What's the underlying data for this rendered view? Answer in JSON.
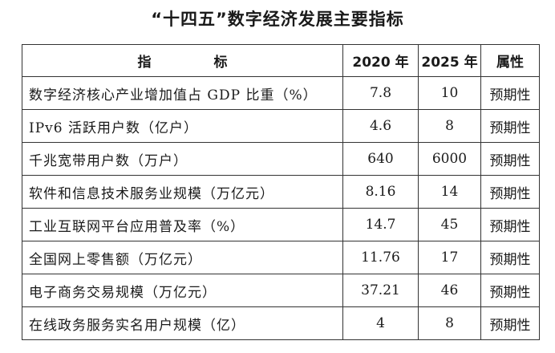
{
  "title": "“十四五”数字经济发展主要指标",
  "table": {
    "headers": {
      "indicator": "指 标",
      "y2020": "2020 年",
      "y2025": "2025 年",
      "attribute": "属性"
    },
    "rows": [
      {
        "indicator": "数字经济核心产业增加值占 GDP 比重（%）",
        "y2020": "7.8",
        "y2025": "10",
        "attribute": "预期性"
      },
      {
        "indicator": "IPv6 活跃用户数（亿户）",
        "y2020": "4.6",
        "y2025": "8",
        "attribute": "预期性"
      },
      {
        "indicator": "千兆宽带用户数（万户）",
        "y2020": "640",
        "y2025": "6000",
        "attribute": "预期性"
      },
      {
        "indicator": "软件和信息技术服务业规模（万亿元）",
        "y2020": "8.16",
        "y2025": "14",
        "attribute": "预期性"
      },
      {
        "indicator": "工业互联网平台应用普及率（%）",
        "y2020": "14.7",
        "y2025": "45",
        "attribute": "预期性"
      },
      {
        "indicator": "全国网上零售额（万亿元）",
        "y2020": "11.76",
        "y2025": "17",
        "attribute": "预期性"
      },
      {
        "indicator": "电子商务交易规模（万亿元）",
        "y2020": "37.21",
        "y2025": "46",
        "attribute": "预期性"
      },
      {
        "indicator": "在线政务服务实名用户规模（亿）",
        "y2020": "4",
        "y2025": "8",
        "attribute": "预期性"
      }
    ]
  }
}
